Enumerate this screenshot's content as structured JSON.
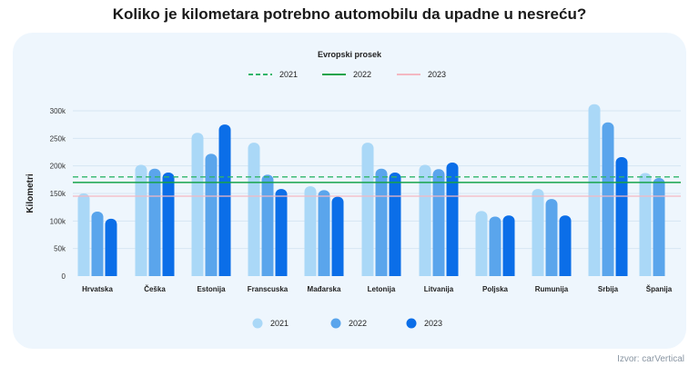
{
  "title": "Koliko je kilometara potrebno automobilu da upadne u nesreću?",
  "source": "Izvor: carVertical",
  "colors": {
    "y2021": "#aad8f7",
    "y2022": "#5aa5ec",
    "y2023": "#0b6ee8",
    "avg2021": "#2fb56a",
    "avg2022": "#16a34a",
    "avg2023": "#f4b8c2",
    "panel": "#eef6fd"
  },
  "chart_data": {
    "type": "bar",
    "ylabel": "Kilometri",
    "ylim": [
      0,
      300000
    ],
    "y_ticks": [
      0,
      50000,
      100000,
      150000,
      200000,
      250000,
      300000
    ],
    "y_tick_labels": [
      "0",
      "50k",
      "100k",
      "150k",
      "200k",
      "250k",
      "300k"
    ],
    "categories": [
      "Hrvatska",
      "Češka",
      "Estonija",
      "Franscuska",
      "Mađarska",
      "Letonija",
      "Litvanija",
      "Poljska",
      "Rumunija",
      "Srbija",
      "Španija"
    ],
    "series": [
      {
        "name": "2021",
        "values": [
          150000,
          202000,
          260000,
          242000,
          163000,
          242000,
          202000,
          118000,
          158000,
          312000,
          187000
        ]
      },
      {
        "name": "2022",
        "values": [
          117000,
          195000,
          222000,
          184000,
          156000,
          195000,
          194000,
          108000,
          140000,
          279000,
          178000
        ]
      },
      {
        "name": "2023",
        "values": [
          104000,
          188000,
          275000,
          158000,
          144000,
          188000,
          206000,
          110000,
          110000,
          216000,
          null
        ]
      }
    ],
    "reference_lines": {
      "title": "Evropski prosek",
      "lines": [
        {
          "name": "2021",
          "value": 180000,
          "style": "dashed"
        },
        {
          "name": "2022",
          "value": 170000,
          "style": "solid"
        },
        {
          "name": "2023",
          "value": 145000,
          "style": "solid"
        }
      ]
    },
    "legend_position": "bottom",
    "grid": true
  }
}
